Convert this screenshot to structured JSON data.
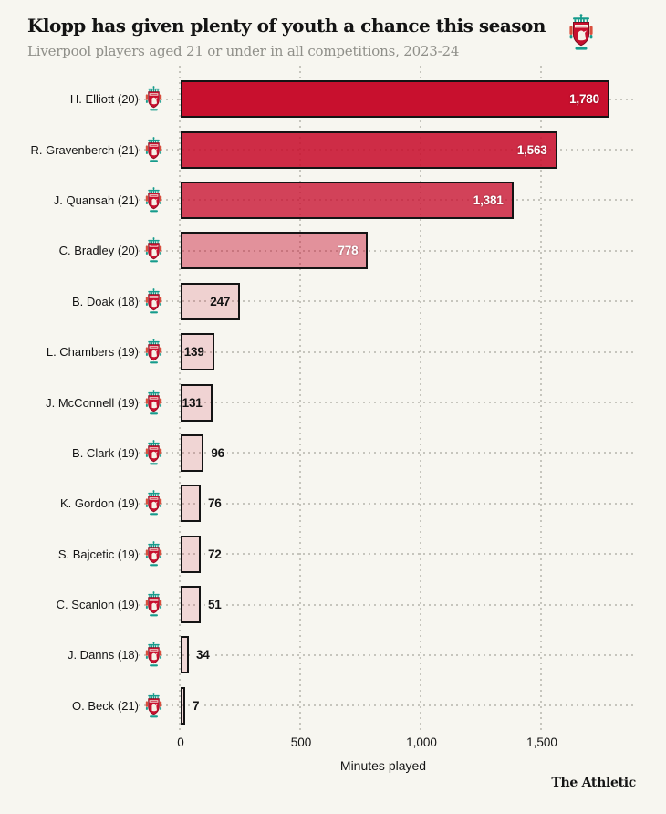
{
  "header": {
    "title": "Klopp has given plenty of youth a chance this season",
    "subtitle": "Liverpool players aged 21 or under in all competitions, 2023-24"
  },
  "branding": {
    "footer": "The Athletic",
    "crest_alt": "Liverpool FC crest"
  },
  "chart_data": {
    "type": "bar",
    "orientation": "horizontal",
    "title": "Klopp has given plenty of youth a chance this season",
    "subtitle": "Liverpool players aged 21 or under in all competitions, 2023-24",
    "xlabel": "Minutes played",
    "xlim": [
      0,
      1900
    ],
    "grid": "dotted vertical gridlines at ticks; dotted horizontal leader per row",
    "legend": "none",
    "base_color": "#c8102e",
    "bar_border_color": "#141414",
    "background_color": "#f7f6f0",
    "dotted_line_color": "#c6c5bd",
    "xticks": [
      {
        "value": 0,
        "label": "0"
      },
      {
        "value": 500,
        "label": "500"
      },
      {
        "value": 1000,
        "label": "1,000"
      },
      {
        "value": 1500,
        "label": "1,500"
      }
    ],
    "categories": [
      "H. Elliott (20)",
      "R. Gravenberch (21)",
      "J. Quansah (21)",
      "C. Bradley (20)",
      "B. Doak (18)",
      "L. Chambers (19)",
      "J. McConnell (19)",
      "B. Clark (19)",
      "K. Gordon (19)",
      "S. Bajcetic (19)",
      "C. Scanlon (19)",
      "J. Danns (18)",
      "O. Beck (21)"
    ],
    "values": [
      1780,
      1563,
      1381,
      778,
      247,
      139,
      131,
      96,
      76,
      72,
      51,
      34,
      7
    ],
    "players": [
      {
        "label": "H. Elliott (20)",
        "minutes": 1780,
        "display": "1,780",
        "fill": "rgba(200,16,46,1)",
        "value_position": "inside",
        "value_style": "light"
      },
      {
        "label": "R. Gravenberch (21)",
        "minutes": 1563,
        "display": "1,563",
        "fill": "rgba(200,16,46,0.88)",
        "value_position": "inside",
        "value_style": "light"
      },
      {
        "label": "J. Quansah (21)",
        "minutes": 1381,
        "display": "1,381",
        "fill": "rgba(200,16,46,0.78)",
        "value_position": "inside",
        "value_style": "light"
      },
      {
        "label": "C. Bradley (20)",
        "minutes": 778,
        "display": "778",
        "fill": "rgba(200,16,46,0.44)",
        "value_position": "inside",
        "value_style": "light"
      },
      {
        "label": "B. Doak (18)",
        "minutes": 247,
        "display": "247",
        "fill": "rgba(200,16,46,0.16)",
        "value_position": "inside",
        "value_style": "dark"
      },
      {
        "label": "L. Chambers (19)",
        "minutes": 139,
        "display": "139",
        "fill": "rgba(200,16,46,0.15)",
        "value_position": "inside",
        "value_style": "dark"
      },
      {
        "label": "J. McConnell (19)",
        "minutes": 131,
        "display": "131",
        "fill": "rgba(200,16,46,0.15)",
        "value_position": "inside",
        "value_style": "dark"
      },
      {
        "label": "B. Clark (19)",
        "minutes": 96,
        "display": "96",
        "fill": "rgba(200,16,46,0.14)",
        "value_position": "outside",
        "value_style": "dark"
      },
      {
        "label": "K. Gordon (19)",
        "minutes": 76,
        "display": "76",
        "fill": "rgba(200,16,46,0.14)",
        "value_position": "outside",
        "value_style": "dark"
      },
      {
        "label": "S. Bajcetic (19)",
        "minutes": 72,
        "display": "72",
        "fill": "rgba(200,16,46,0.14)",
        "value_position": "outside",
        "value_style": "dark"
      },
      {
        "label": "C. Scanlon (19)",
        "minutes": 51,
        "display": "51",
        "fill": "rgba(200,16,46,0.13)",
        "value_position": "outside",
        "value_style": "dark"
      },
      {
        "label": "J. Danns (18)",
        "minutes": 34,
        "display": "34",
        "fill": "rgba(200,16,46,0.13)",
        "value_position": "outside",
        "value_style": "dark"
      },
      {
        "label": "O. Beck (21)",
        "minutes": 7,
        "display": "7",
        "fill": "rgba(200,16,46,0.13)",
        "value_position": "outside",
        "value_style": "dark"
      }
    ]
  }
}
